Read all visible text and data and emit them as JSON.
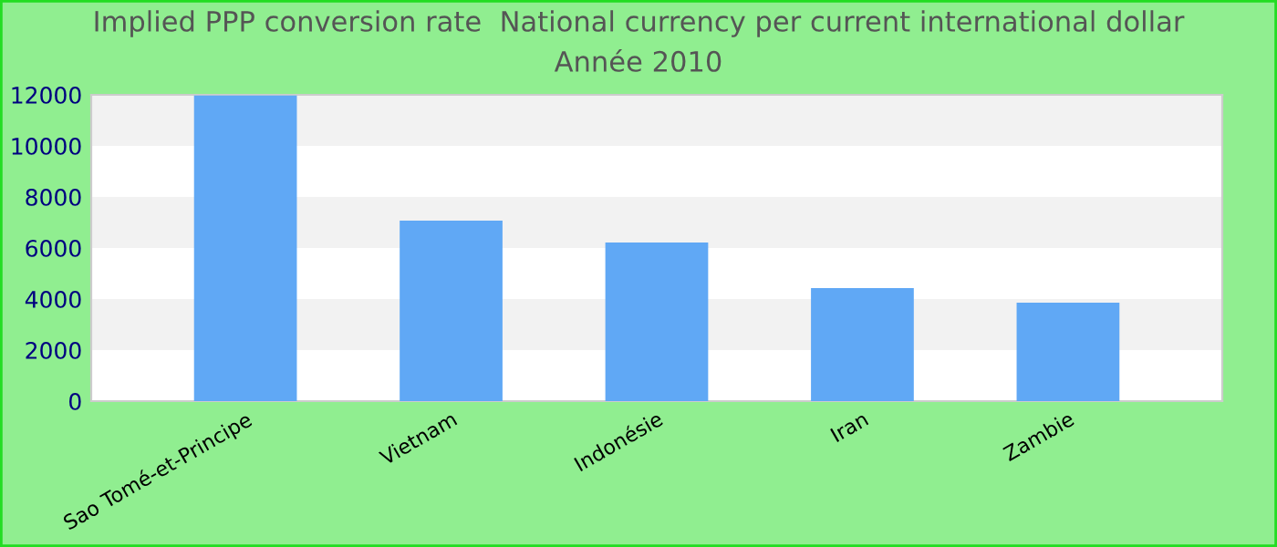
{
  "chart_data": {
    "type": "bar",
    "title": "Implied PPP conversion rate  National currency per current international dollar",
    "subtitle": "Année 2010",
    "categories": [
      "Sao Tomé-et-Principe",
      "Vietnam",
      "Indonésie",
      "Iran",
      "Zambie"
    ],
    "values": [
      11970,
      7070,
      6210,
      4430,
      3860
    ],
    "color": "#60a8f5",
    "ylim": [
      0,
      12000
    ],
    "yticks": [
      0,
      2000,
      4000,
      6000,
      8000,
      10000,
      12000
    ],
    "bands": [
      {
        "axis": "y",
        "from": 2000,
        "to": 4000,
        "color": "#f2f2f2"
      },
      {
        "axis": "y",
        "from": 6000,
        "to": 8000,
        "color": "#f2f2f2"
      },
      {
        "axis": "y",
        "from": 10000,
        "to": 12000,
        "color": "#f2f2f2"
      }
    ],
    "legend": false
  }
}
